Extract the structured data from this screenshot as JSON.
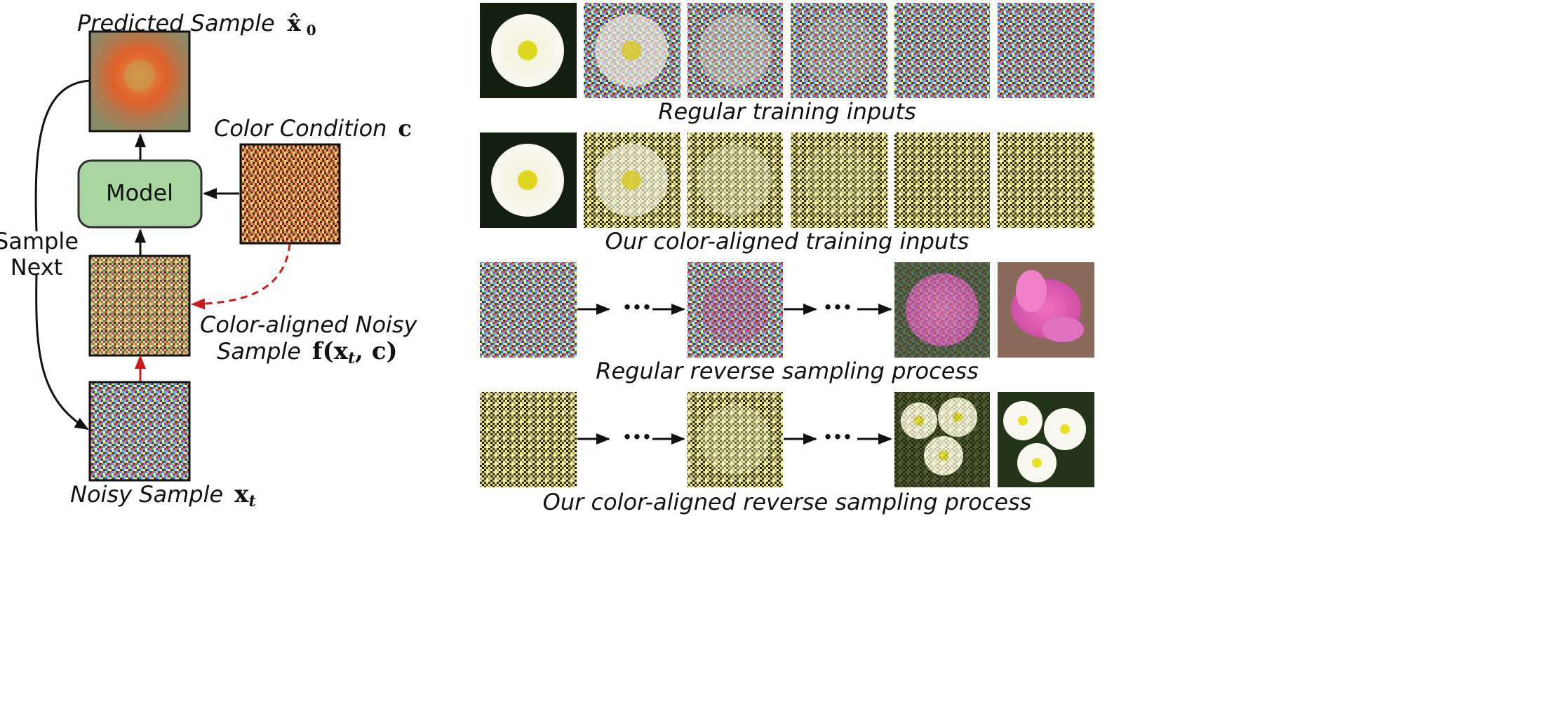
{
  "left_diagram": {
    "predicted_sample_label": "Predicted Sample",
    "predicted_sample_symbol": "x̂",
    "predicted_sample_subscript": "0",
    "color_condition_label": "Color Condition",
    "color_condition_symbol": "c",
    "model_label": "Model",
    "sample_next_line1": "Sample",
    "sample_next_line2": "Next",
    "aligned_label_line1": "Color-aligned Noisy",
    "aligned_label_line2": "Sample",
    "aligned_symbol_f": "f(",
    "aligned_symbol_x": "x",
    "aligned_symbol_t": "t",
    "aligned_symbol_c": ", c)",
    "noisy_sample_label": "Noisy Sample",
    "noisy_sample_symbol": "x",
    "noisy_sample_subscript": "t"
  },
  "right_panel": {
    "row_captions": [
      "Regular training inputs",
      "Our color-aligned training inputs",
      "Regular reverse sampling process",
      "Our color-aligned reverse sampling process"
    ],
    "ellipsis": "···"
  },
  "colors": {
    "model_fill": "#a9d5a0",
    "model_stroke": "#2f2f2f",
    "red_arrow": "#cc1a1a",
    "black_arrow": "#111111"
  }
}
